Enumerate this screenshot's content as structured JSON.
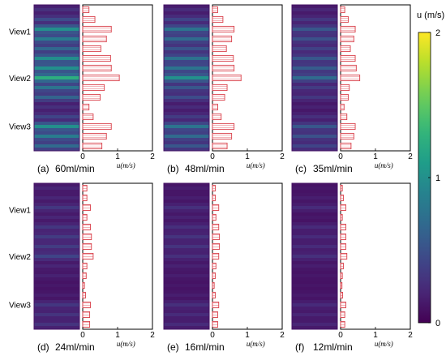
{
  "chart_data": {
    "type": "bar",
    "orientation": "horizontal",
    "value_axis": {
      "label": "u(m/s)",
      "ticks": [
        "0",
        "1",
        "2"
      ],
      "range": [
        0,
        2
      ]
    },
    "view_labels": [
      "View1",
      "View2",
      "View3"
    ],
    "colorbar": {
      "label": "u (m/s)",
      "min": 0,
      "max": 2,
      "ticks": [
        "2",
        "1",
        "0"
      ],
      "colormap": "viridis"
    },
    "bar_style": {
      "edge": "#d9404a",
      "fill": "#ffffff",
      "hatch": "#f2b5ba"
    },
    "panels": [
      {
        "label": "(a)",
        "flow": "60ml/min",
        "values": [
          0.18,
          0.35,
          0.82,
          0.68,
          0.52,
          0.8,
          0.82,
          1.05,
          0.62,
          0.5,
          0.18,
          0.3,
          0.82,
          0.68,
          0.55
        ]
      },
      {
        "label": "(b)",
        "flow": "48ml/min",
        "values": [
          0.15,
          0.3,
          0.62,
          0.55,
          0.4,
          0.6,
          0.62,
          0.82,
          0.42,
          0.35,
          0.15,
          0.25,
          0.62,
          0.55,
          0.42
        ]
      },
      {
        "label": "(c)",
        "flow": "35ml/min",
        "values": [
          0.12,
          0.22,
          0.42,
          0.38,
          0.28,
          0.42,
          0.45,
          0.55,
          0.25,
          0.22,
          0.1,
          0.18,
          0.42,
          0.38,
          0.3
        ]
      },
      {
        "label": "(d)",
        "flow": "24ml/min",
        "values": [
          0.12,
          0.12,
          0.22,
          0.12,
          0.22,
          0.25,
          0.25,
          0.3,
          0.12,
          0.1,
          0.05,
          0.08,
          0.22,
          0.2,
          0.2
        ]
      },
      {
        "label": "(e)",
        "flow": "16ml/min",
        "values": [
          0.08,
          0.08,
          0.18,
          0.1,
          0.18,
          0.2,
          0.2,
          0.18,
          0.1,
          0.08,
          0.05,
          0.08,
          0.18,
          0.15,
          0.15
        ]
      },
      {
        "label": "(f)",
        "flow": "12ml/min",
        "values": [
          0.05,
          0.08,
          0.15,
          0.05,
          0.15,
          0.15,
          0.15,
          0.18,
          0.08,
          0.05,
          0.04,
          0.06,
          0.15,
          0.12,
          0.12
        ]
      }
    ]
  }
}
